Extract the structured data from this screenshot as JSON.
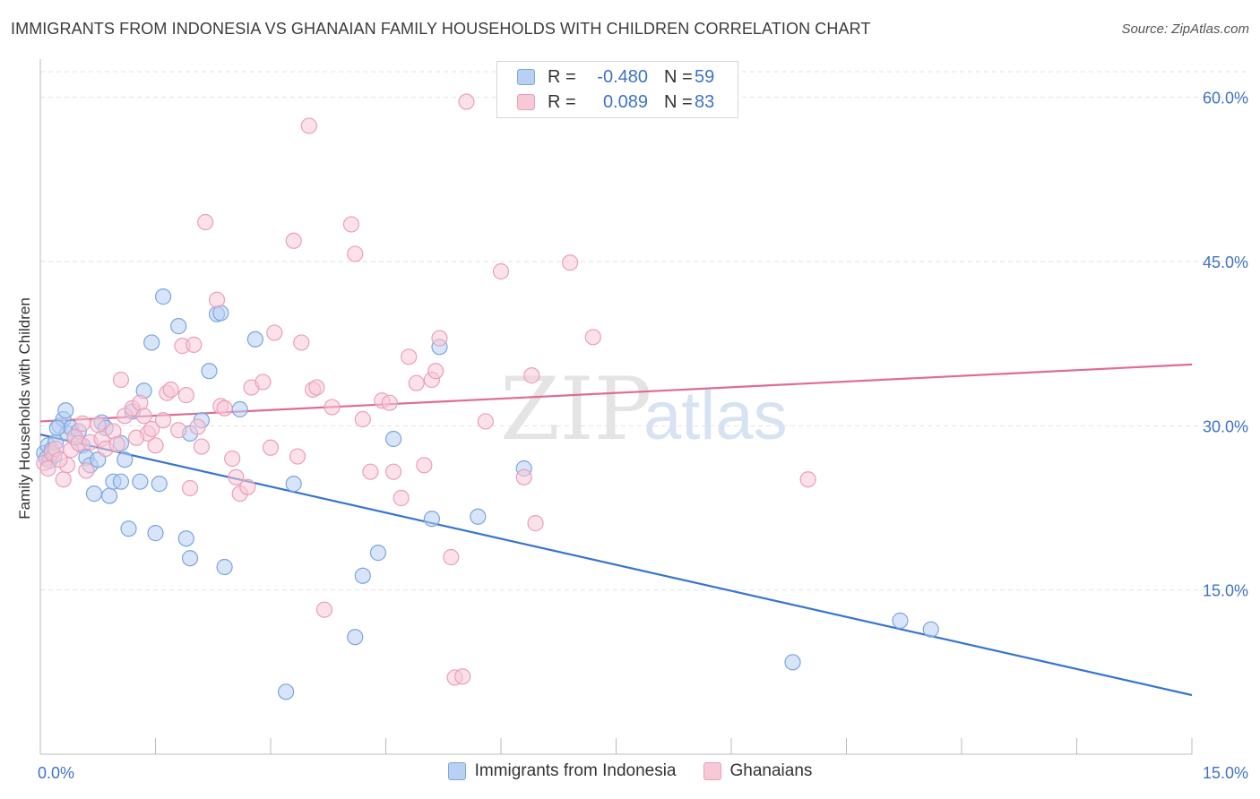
{
  "chart_data": {
    "type": "scatter",
    "title": "IMMIGRANTS FROM INDONESIA VS GHANAIAN FAMILY HOUSEHOLDS WITH CHILDREN CORRELATION CHART",
    "source": "Source: ZipAtlas.com",
    "ylabel": "Family Households with Children",
    "xlim": [
      0,
      15
    ],
    "ylim": [
      0,
      63
    ],
    "x_tick_labels": [
      "0.0%",
      "15.0%"
    ],
    "y_ticks": [
      15,
      30,
      45,
      60
    ],
    "y_tick_labels": [
      "15.0%",
      "30.0%",
      "45.0%",
      "60.0%"
    ],
    "watermark": {
      "zip": "ZIP",
      "atlas": "atlas"
    },
    "legend": [
      {
        "r_label": "R =",
        "r_value": "-0.480",
        "n_label": "N =",
        "n_value": "59"
      },
      {
        "r_label": "R =",
        "r_value": "0.089",
        "n_label": "N =",
        "n_value": "83"
      }
    ],
    "series": [
      {
        "name": "Immigrants from Indonesia",
        "color": "#7aa5e0",
        "fill": "#b8d0f2",
        "line_color": "#3873d3",
        "trend": {
          "x": [
            0,
            15
          ],
          "y": [
            29.2,
            5.4
          ]
        },
        "points": [
          [
            0.05,
            27.5
          ],
          [
            0.08,
            27.0
          ],
          [
            0.1,
            28.2
          ],
          [
            0.12,
            26.8
          ],
          [
            0.15,
            27.8
          ],
          [
            0.18,
            27.3
          ],
          [
            0.2,
            28.5
          ],
          [
            0.25,
            30.0
          ],
          [
            0.3,
            30.6
          ],
          [
            0.33,
            31.4
          ],
          [
            0.35,
            29.3
          ],
          [
            0.4,
            29.8
          ],
          [
            0.45,
            28.9
          ],
          [
            0.5,
            29.5
          ],
          [
            0.55,
            28.2
          ],
          [
            0.6,
            27.1
          ],
          [
            0.65,
            26.4
          ],
          [
            0.7,
            23.8
          ],
          [
            0.75,
            26.9
          ],
          [
            0.8,
            30.3
          ],
          [
            0.85,
            29.8
          ],
          [
            0.9,
            23.6
          ],
          [
            0.95,
            24.9
          ],
          [
            1.05,
            24.9
          ],
          [
            1.1,
            26.9
          ],
          [
            1.15,
            20.6
          ],
          [
            1.2,
            31.3
          ],
          [
            1.3,
            24.9
          ],
          [
            1.35,
            33.2
          ],
          [
            1.45,
            37.6
          ],
          [
            1.5,
            20.2
          ],
          [
            1.55,
            24.7
          ],
          [
            1.6,
            41.8
          ],
          [
            1.8,
            39.1
          ],
          [
            1.9,
            19.7
          ],
          [
            1.95,
            17.9
          ],
          [
            2.1,
            30.5
          ],
          [
            2.2,
            35.0
          ],
          [
            2.3,
            40.2
          ],
          [
            2.35,
            40.3
          ],
          [
            2.4,
            17.1
          ],
          [
            2.6,
            31.5
          ],
          [
            2.8,
            37.9
          ],
          [
            3.2,
            5.7
          ],
          [
            3.3,
            24.7
          ],
          [
            4.1,
            10.7
          ],
          [
            4.2,
            16.3
          ],
          [
            4.4,
            18.4
          ],
          [
            4.6,
            28.8
          ],
          [
            5.1,
            21.5
          ],
          [
            5.2,
            37.2
          ],
          [
            5.7,
            21.7
          ],
          [
            6.3,
            26.1
          ],
          [
            9.8,
            8.4
          ],
          [
            11.2,
            12.2
          ],
          [
            11.6,
            11.4
          ],
          [
            0.22,
            29.8
          ],
          [
            1.05,
            28.4
          ],
          [
            1.95,
            29.3
          ]
        ]
      },
      {
        "name": "Ghanaians",
        "color": "#eaa0b8",
        "fill": "#f7c9d7",
        "line_color": "#e06b94",
        "trend": {
          "x": [
            0,
            15
          ],
          "y": [
            30.4,
            35.6
          ]
        },
        "points": [
          [
            0.05,
            26.6
          ],
          [
            0.1,
            26.1
          ],
          [
            0.15,
            27.5
          ],
          [
            0.2,
            27.9
          ],
          [
            0.3,
            25.1
          ],
          [
            0.35,
            26.4
          ],
          [
            0.4,
            27.8
          ],
          [
            0.45,
            29.0
          ],
          [
            0.5,
            28.4
          ],
          [
            0.55,
            30.2
          ],
          [
            0.6,
            25.9
          ],
          [
            0.65,
            28.5
          ],
          [
            0.75,
            30.1
          ],
          [
            0.8,
            28.8
          ],
          [
            0.85,
            27.9
          ],
          [
            0.95,
            29.5
          ],
          [
            1.0,
            28.3
          ],
          [
            1.05,
            34.2
          ],
          [
            1.1,
            30.9
          ],
          [
            1.2,
            31.6
          ],
          [
            1.3,
            32.1
          ],
          [
            1.35,
            30.9
          ],
          [
            1.4,
            29.3
          ],
          [
            1.45,
            29.7
          ],
          [
            1.5,
            28.2
          ],
          [
            1.6,
            30.5
          ],
          [
            1.65,
            33.0
          ],
          [
            1.7,
            33.3
          ],
          [
            1.8,
            29.6
          ],
          [
            1.85,
            37.3
          ],
          [
            1.9,
            32.8
          ],
          [
            1.95,
            24.3
          ],
          [
            2.0,
            37.4
          ],
          [
            2.1,
            28.1
          ],
          [
            2.15,
            48.6
          ],
          [
            2.3,
            41.5
          ],
          [
            2.35,
            31.8
          ],
          [
            2.4,
            31.6
          ],
          [
            2.5,
            27.0
          ],
          [
            2.55,
            25.3
          ],
          [
            2.6,
            23.8
          ],
          [
            2.7,
            24.4
          ],
          [
            2.75,
            33.5
          ],
          [
            2.9,
            34.0
          ],
          [
            3.0,
            28.0
          ],
          [
            3.05,
            38.5
          ],
          [
            3.3,
            46.9
          ],
          [
            3.35,
            27.2
          ],
          [
            3.4,
            37.6
          ],
          [
            3.5,
            57.4
          ],
          [
            3.55,
            33.3
          ],
          [
            3.6,
            33.5
          ],
          [
            3.7,
            13.2
          ],
          [
            3.8,
            31.7
          ],
          [
            4.05,
            48.4
          ],
          [
            4.1,
            45.7
          ],
          [
            4.2,
            30.6
          ],
          [
            4.3,
            25.8
          ],
          [
            4.45,
            32.3
          ],
          [
            4.55,
            32.1
          ],
          [
            4.6,
            25.8
          ],
          [
            4.7,
            23.4
          ],
          [
            4.8,
            36.3
          ],
          [
            4.9,
            33.9
          ],
          [
            5.0,
            26.4
          ],
          [
            5.1,
            34.2
          ],
          [
            5.15,
            35.0
          ],
          [
            5.2,
            38.0
          ],
          [
            5.35,
            18.0
          ],
          [
            5.4,
            7.0
          ],
          [
            5.5,
            7.1
          ],
          [
            5.55,
            59.6
          ],
          [
            5.8,
            30.4
          ],
          [
            6.0,
            44.1
          ],
          [
            6.3,
            25.3
          ],
          [
            6.4,
            34.6
          ],
          [
            6.45,
            21.1
          ],
          [
            6.9,
            44.9
          ],
          [
            7.2,
            38.1
          ],
          [
            10.0,
            25.1
          ],
          [
            0.25,
            26.9
          ],
          [
            1.25,
            28.9
          ],
          [
            2.05,
            29.9
          ]
        ]
      }
    ]
  }
}
